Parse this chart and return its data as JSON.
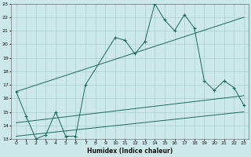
{
  "xlabel": "Humidex (Indice chaleur)",
  "background_color": "#cce8e8",
  "grid_color": "#aacfcf",
  "line_color": "#1a6b5a",
  "xlim": [
    -0.5,
    23.5
  ],
  "ylim": [
    13,
    23
  ],
  "yticks": [
    13,
    14,
    15,
    16,
    17,
    18,
    19,
    20,
    21,
    22,
    23
  ],
  "xticks": [
    0,
    1,
    2,
    3,
    4,
    5,
    6,
    7,
    8,
    9,
    10,
    11,
    12,
    13,
    14,
    15,
    16,
    17,
    18,
    19,
    20,
    21,
    22,
    23
  ],
  "series": [
    {
      "x": [
        0,
        1,
        2,
        3,
        4,
        5,
        6,
        7,
        10,
        11,
        12,
        13,
        14,
        15,
        16,
        17,
        18,
        19,
        20,
        21,
        22,
        23
      ],
      "y": [
        16.5,
        14.7,
        13.0,
        13.3,
        15.0,
        13.2,
        13.2,
        17.0,
        20.5,
        20.3,
        19.3,
        20.2,
        23.0,
        21.8,
        21.0,
        22.2,
        21.2,
        17.3,
        16.6,
        17.3,
        16.8,
        15.5
      ],
      "marker": "+"
    },
    {
      "x": [
        0,
        23
      ],
      "y": [
        13.2,
        15.0
      ],
      "marker": null
    },
    {
      "x": [
        0,
        23
      ],
      "y": [
        14.2,
        16.2
      ],
      "marker": null
    },
    {
      "x": [
        0,
        23
      ],
      "y": [
        16.5,
        22.0
      ],
      "marker": null
    }
  ]
}
